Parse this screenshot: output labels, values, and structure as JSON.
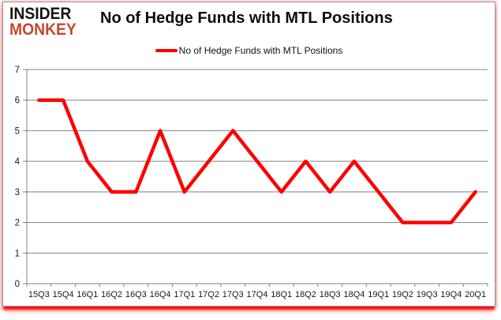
{
  "logo": {
    "line1": "INSIDER",
    "line2": "MONKEY"
  },
  "header": {
    "title": "No of Hedge Funds with MTL Positions"
  },
  "legend": {
    "label": "No of Hedge Funds with MTL Positions"
  },
  "colors": {
    "line": "#ff0000",
    "logo_black": "#141414",
    "logo_accent": "#c5492f",
    "grid": "#808080",
    "axis_text": "#1a1a1a",
    "bottom_glow": "#ff0000",
    "card_border": "#9b9b9b",
    "background": "#ffffff"
  },
  "chart_data": {
    "type": "line",
    "title": "No of Hedge Funds with MTL Positions",
    "categories": [
      "15Q3",
      "15Q4",
      "16Q1",
      "16Q2",
      "16Q3",
      "16Q4",
      "17Q1",
      "17Q2",
      "17Q3",
      "17Q4",
      "18Q1",
      "18Q2",
      "18Q3",
      "18Q4",
      "19Q1",
      "19Q2",
      "19Q3",
      "19Q4",
      "20Q1"
    ],
    "series": [
      {
        "name": "No of Hedge Funds with MTL Positions",
        "color": "#ff0000",
        "values": [
          6,
          6,
          4,
          3,
          3,
          5,
          3,
          4,
          5,
          4,
          3,
          4,
          3,
          4,
          3,
          2,
          2,
          2,
          3
        ]
      }
    ],
    "xlabel": "",
    "ylabel": "",
    "ylim": [
      0,
      7
    ],
    "ytick_step": 1,
    "grid": true,
    "legend_position": "top"
  }
}
